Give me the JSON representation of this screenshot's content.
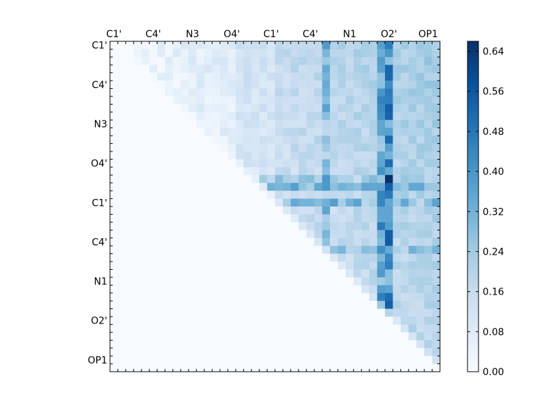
{
  "chart_data": {
    "type": "heatmap",
    "title": "",
    "xlabel": "",
    "ylabel": "",
    "size": 42,
    "tick_positions": [
      0,
      5,
      10,
      15,
      20,
      25,
      30,
      35,
      40
    ],
    "tick_labels": [
      "C1'",
      "C4'",
      "N3",
      "O4'",
      "C1'",
      "C4'",
      "N1",
      "O2'",
      "OP1"
    ],
    "colormap": "Blues",
    "colormap_low": "#f7fbff",
    "colormap_high": "#08306b",
    "value_range": [
      0.0,
      0.66
    ],
    "colorbar_ticks": [
      "0.00",
      "0.08",
      "0.16",
      "0.24",
      "0.32",
      "0.40",
      "0.48",
      "0.56",
      "0.64"
    ],
    "colorbar_tick_values": [
      0.0,
      0.08,
      0.16,
      0.24,
      0.32,
      0.4,
      0.48,
      0.56,
      0.64
    ],
    "upper_triangle_only": true,
    "approximate_cell_values": {
      "background": 0.0,
      "columns_strong": {
        "27": 0.3,
        "34": 0.36,
        "35": 0.44
      },
      "rows_strong": {
        "17": 0.24,
        "18": 0.3,
        "20": 0.3,
        "26": 0.26
      },
      "peak": {
        "row": 17,
        "col": 35,
        "value": 0.64
      },
      "typical_upper_region": 0.14,
      "far_upper_region": 0.2
    }
  }
}
